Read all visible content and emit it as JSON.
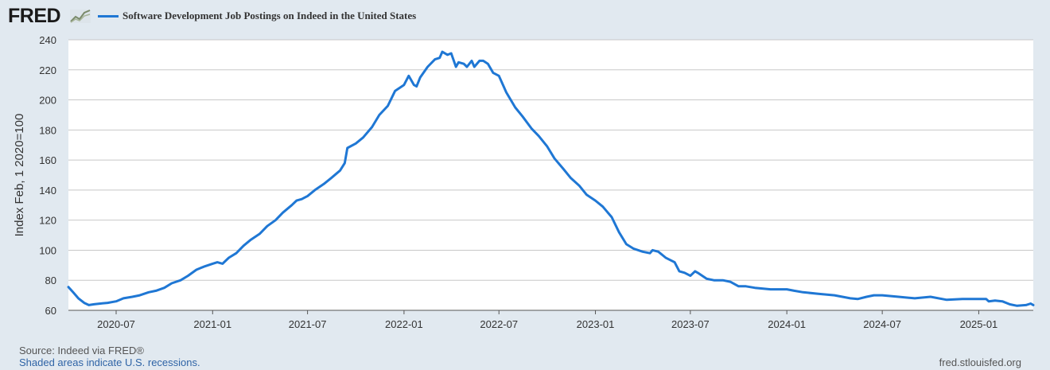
{
  "header": {
    "logo_text": "FRED",
    "logo_icon": "line-graph-icon",
    "legend_label": "Software Development Job Postings on Indeed in the United States"
  },
  "colors": {
    "series": "#1f77d4",
    "background": "#e1e9f0",
    "plot_background": "#ffffff",
    "grid": "#c8c8c8"
  },
  "chart_data": {
    "type": "line",
    "ylabel": "Index Feb, 1 2020=100",
    "ylim": [
      60,
      240
    ],
    "yticks": [
      60,
      80,
      100,
      120,
      140,
      160,
      180,
      200,
      220,
      240
    ],
    "xlim": [
      "2020-04-01",
      "2025-04-15"
    ],
    "xticks": [
      "2020-07",
      "2021-01",
      "2021-07",
      "2022-01",
      "2022-07",
      "2023-01",
      "2023-07",
      "2024-01",
      "2024-07",
      "2025-01"
    ],
    "grid": true,
    "legend_position": "top",
    "series": [
      {
        "name": "Software Development Job Postings on Indeed in the United States",
        "color": "#1f77d4",
        "points": [
          [
            "2020-04-01",
            75.5
          ],
          [
            "2020-04-10",
            72.0
          ],
          [
            "2020-04-20",
            68.0
          ],
          [
            "2020-05-01",
            65.0
          ],
          [
            "2020-05-10",
            63.5
          ],
          [
            "2020-05-20",
            64.0
          ],
          [
            "2020-06-01",
            64.5
          ],
          [
            "2020-06-15",
            65.0
          ],
          [
            "2020-07-01",
            66.0
          ],
          [
            "2020-07-15",
            68.0
          ],
          [
            "2020-08-01",
            69.0
          ],
          [
            "2020-08-15",
            70.0
          ],
          [
            "2020-09-01",
            72.0
          ],
          [
            "2020-09-15",
            73.0
          ],
          [
            "2020-10-01",
            75.0
          ],
          [
            "2020-10-15",
            78.0
          ],
          [
            "2020-11-01",
            80.0
          ],
          [
            "2020-11-15",
            83.0
          ],
          [
            "2020-12-01",
            87.0
          ],
          [
            "2020-12-15",
            89.0
          ],
          [
            "2021-01-01",
            91.0
          ],
          [
            "2021-01-10",
            92.0
          ],
          [
            "2021-01-20",
            91.0
          ],
          [
            "2021-02-01",
            95.0
          ],
          [
            "2021-02-15",
            98.0
          ],
          [
            "2021-03-01",
            103.0
          ],
          [
            "2021-03-15",
            107.0
          ],
          [
            "2021-04-01",
            111.0
          ],
          [
            "2021-04-15",
            116.0
          ],
          [
            "2021-05-01",
            120.0
          ],
          [
            "2021-05-15",
            125.0
          ],
          [
            "2021-06-01",
            130.0
          ],
          [
            "2021-06-10",
            133.0
          ],
          [
            "2021-06-20",
            134.0
          ],
          [
            "2021-07-01",
            136.0
          ],
          [
            "2021-07-15",
            140.0
          ],
          [
            "2021-08-01",
            144.0
          ],
          [
            "2021-08-15",
            148.0
          ],
          [
            "2021-09-01",
            153.0
          ],
          [
            "2021-09-10",
            158.0
          ],
          [
            "2021-09-15",
            168.0
          ],
          [
            "2021-10-01",
            171.0
          ],
          [
            "2021-10-15",
            175.0
          ],
          [
            "2021-11-01",
            182.0
          ],
          [
            "2021-11-15",
            190.0
          ],
          [
            "2021-12-01",
            196.0
          ],
          [
            "2021-12-15",
            206.0
          ],
          [
            "2022-01-01",
            210.0
          ],
          [
            "2022-01-10",
            216.0
          ],
          [
            "2022-01-20",
            210.0
          ],
          [
            "2022-01-25",
            209.0
          ],
          [
            "2022-02-01",
            215.0
          ],
          [
            "2022-02-15",
            222.0
          ],
          [
            "2022-03-01",
            227.0
          ],
          [
            "2022-03-10",
            228.0
          ],
          [
            "2022-03-15",
            232.0
          ],
          [
            "2022-03-25",
            230.0
          ],
          [
            "2022-04-01",
            231.0
          ],
          [
            "2022-04-10",
            222.0
          ],
          [
            "2022-04-15",
            225.0
          ],
          [
            "2022-04-25",
            224.0
          ],
          [
            "2022-05-01",
            222.0
          ],
          [
            "2022-05-10",
            226.0
          ],
          [
            "2022-05-15",
            222.0
          ],
          [
            "2022-05-25",
            226.0
          ],
          [
            "2022-06-01",
            226.0
          ],
          [
            "2022-06-10",
            224.0
          ],
          [
            "2022-06-20",
            218.0
          ],
          [
            "2022-07-01",
            216.0
          ],
          [
            "2022-07-15",
            205.0
          ],
          [
            "2022-08-01",
            195.0
          ],
          [
            "2022-08-15",
            189.0
          ],
          [
            "2022-09-01",
            181.0
          ],
          [
            "2022-09-15",
            176.0
          ],
          [
            "2022-10-01",
            169.0
          ],
          [
            "2022-10-15",
            161.0
          ],
          [
            "2022-11-01",
            154.0
          ],
          [
            "2022-11-15",
            148.0
          ],
          [
            "2022-12-01",
            143.0
          ],
          [
            "2022-12-15",
            137.0
          ],
          [
            "2023-01-01",
            133.0
          ],
          [
            "2023-01-15",
            129.0
          ],
          [
            "2023-02-01",
            122.0
          ],
          [
            "2023-02-15",
            112.0
          ],
          [
            "2023-03-01",
            104.0
          ],
          [
            "2023-03-15",
            101.0
          ],
          [
            "2023-04-01",
            99.0
          ],
          [
            "2023-04-15",
            98.0
          ],
          [
            "2023-04-20",
            100.0
          ],
          [
            "2023-05-01",
            99.0
          ],
          [
            "2023-05-15",
            95.0
          ],
          [
            "2023-06-01",
            92.0
          ],
          [
            "2023-06-10",
            86.0
          ],
          [
            "2023-06-20",
            85.0
          ],
          [
            "2023-07-01",
            83.0
          ],
          [
            "2023-07-10",
            86.0
          ],
          [
            "2023-07-15",
            85.0
          ],
          [
            "2023-08-01",
            81.0
          ],
          [
            "2023-08-15",
            80.0
          ],
          [
            "2023-09-01",
            80.0
          ],
          [
            "2023-09-15",
            79.0
          ],
          [
            "2023-10-01",
            76.0
          ],
          [
            "2023-10-15",
            76.0
          ],
          [
            "2023-11-01",
            75.0
          ],
          [
            "2023-12-01",
            74.0
          ],
          [
            "2024-01-01",
            74.0
          ],
          [
            "2024-01-15",
            73.0
          ],
          [
            "2024-02-01",
            72.0
          ],
          [
            "2024-03-01",
            71.0
          ],
          [
            "2024-04-01",
            70.0
          ],
          [
            "2024-05-01",
            68.0
          ],
          [
            "2024-05-15",
            67.5
          ],
          [
            "2024-06-01",
            69.0
          ],
          [
            "2024-06-15",
            70.0
          ],
          [
            "2024-07-01",
            70.0
          ],
          [
            "2024-08-01",
            69.0
          ],
          [
            "2024-09-01",
            68.0
          ],
          [
            "2024-10-01",
            69.0
          ],
          [
            "2024-11-01",
            67.0
          ],
          [
            "2024-12-01",
            67.5
          ],
          [
            "2025-01-01",
            67.5
          ],
          [
            "2025-01-15",
            67.5
          ],
          [
            "2025-01-20",
            66.0
          ],
          [
            "2025-02-01",
            66.5
          ],
          [
            "2025-02-15",
            66.0
          ],
          [
            "2025-03-01",
            64.0
          ],
          [
            "2025-03-15",
            63.0
          ],
          [
            "2025-04-01",
            63.5
          ],
          [
            "2025-04-10",
            64.5
          ],
          [
            "2025-04-15",
            63.5
          ]
        ]
      }
    ]
  },
  "footer": {
    "source": "Source: Indeed via FRED®",
    "recessions": "Shaded areas indicate U.S. recessions.",
    "url": "fred.stlouisfed.org"
  }
}
